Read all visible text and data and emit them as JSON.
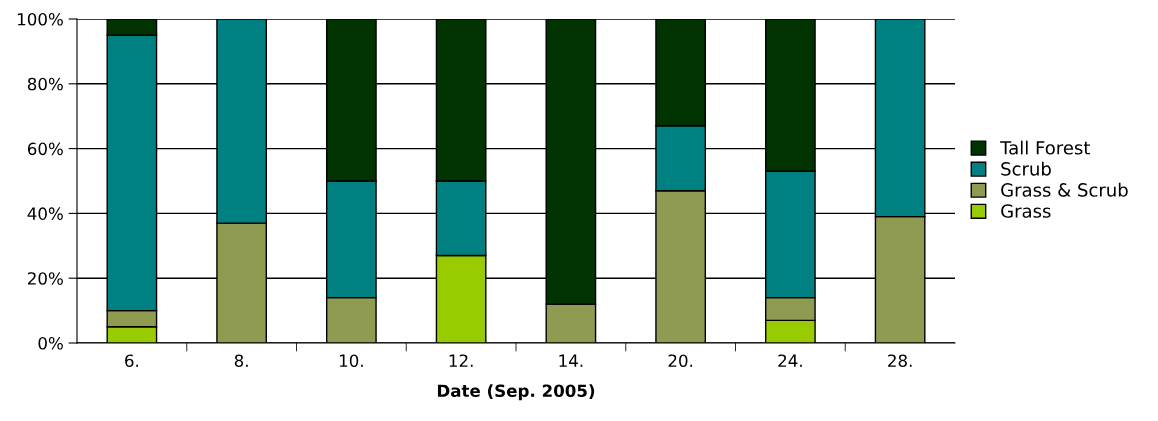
{
  "chart_data": {
    "type": "bar",
    "stacked": true,
    "xlabel": "Date (Sep. 2005)",
    "categories": [
      "6.",
      "8.",
      "10.",
      "12.",
      "14.",
      "20.",
      "24.",
      "28."
    ],
    "series": [
      {
        "name": "Grass",
        "color": "#99cc00",
        "values": [
          5,
          0,
          0,
          27,
          0,
          0,
          7,
          0
        ]
      },
      {
        "name": "Grass & Scrub",
        "color": "#8f9b50",
        "values": [
          5,
          37,
          14,
          0,
          12,
          47,
          7,
          39
        ]
      },
      {
        "name": "Scrub",
        "color": "#008080",
        "values": [
          85,
          63,
          36,
          23,
          0,
          20,
          39,
          61
        ]
      },
      {
        "name": "Tall Forest",
        "color": "#003300",
        "values": [
          5,
          0,
          50,
          50,
          88,
          33,
          47,
          0
        ]
      }
    ],
    "ylim": [
      0,
      100
    ],
    "yticks": [
      {
        "value": 0,
        "label": "0%"
      },
      {
        "value": 20,
        "label": "20%"
      },
      {
        "value": 40,
        "label": "40%"
      },
      {
        "value": 60,
        "label": "60%"
      },
      {
        "value": 80,
        "label": "80%"
      },
      {
        "value": 100,
        "label": "100%"
      }
    ],
    "grid": "y",
    "legend": "right"
  }
}
